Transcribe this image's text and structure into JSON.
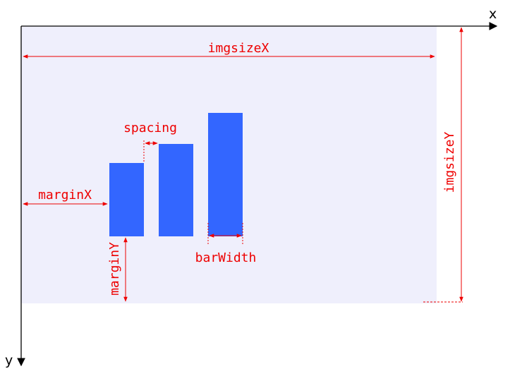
{
  "axes": {
    "x_label": "x",
    "y_label": "y"
  },
  "labels": {
    "imgsize_x": "imgsizeX",
    "imgsize_y": "imgsizeY",
    "spacing": "spacing",
    "margin_x": "marginX",
    "margin_y": "marginY",
    "bar_width": "barWidth"
  },
  "colors": {
    "canvas": "#efeffc",
    "bar": "#3366ff",
    "annotation": "#ee0000",
    "axis": "#000000"
  }
}
